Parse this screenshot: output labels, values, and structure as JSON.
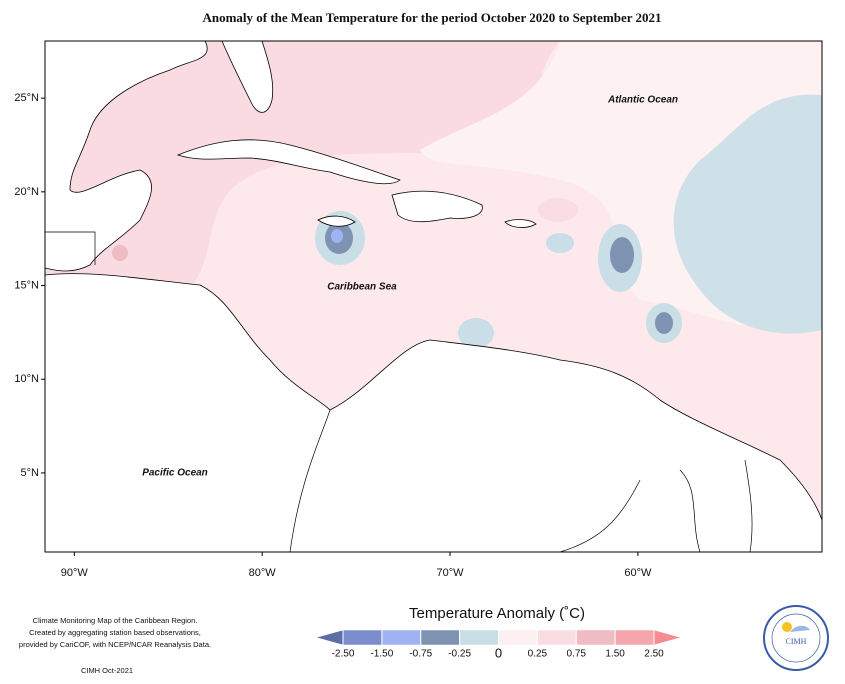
{
  "title": "Anomaly of the Mean Temperature for the period October 2020 to September 2021",
  "map": {
    "latlim": [
      0.78,
      28.05
    ],
    "lonlim": [
      -91.56,
      -50.2
    ],
    "lat_ticks": [
      {
        "value": 5,
        "label": "5°N"
      },
      {
        "value": 10,
        "label": "10°N"
      },
      {
        "value": 15,
        "label": "15°N"
      },
      {
        "value": 20,
        "label": "20°N"
      },
      {
        "value": 25,
        "label": "25°N"
      }
    ],
    "lon_ticks": [
      {
        "value": -90,
        "label": "90°W"
      },
      {
        "value": -80,
        "label": "80°W"
      },
      {
        "value": -70,
        "label": "70°W"
      },
      {
        "value": -60,
        "label": "60°W"
      }
    ],
    "labels": [
      "Atlantic Ocean",
      "Caribbean Sea",
      "Pacific Ocean"
    ]
  },
  "colorbar": {
    "title": "Temperature Anomaly (˚C)",
    "ticks": [
      {
        "value": -2.5,
        "label": "-2.50"
      },
      {
        "value": -1.5,
        "label": "-1.50"
      },
      {
        "value": -0.75,
        "label": "-0.75"
      },
      {
        "value": -0.25,
        "label": "-0.25"
      },
      0,
      {
        "value": 0.25,
        "label": "0.25"
      },
      {
        "value": 0.75,
        "label": "0.75"
      },
      {
        "value": 1.5,
        "label": "1.50"
      },
      {
        "value": 2.5,
        "label": "2.50"
      }
    ],
    "colors": [
      "#5b6ea6",
      "#7b8dcc",
      "#9fb3f4",
      "#7e93b2",
      "#c9dee6",
      "#fdf0f1",
      "#f9dde3",
      "#efbcc4",
      "#f4a5ae",
      "#f58c94"
    ]
  },
  "footnote": [
    "Climate Monitoring Map of the Caribbean Region.",
    "Created by aggregating station based observations,",
    "provided by CariCOF, with NCEP/NCAR Reanalysis Data."
  ],
  "credit": "CIMH Oct-2021",
  "logo": "CIMH"
}
